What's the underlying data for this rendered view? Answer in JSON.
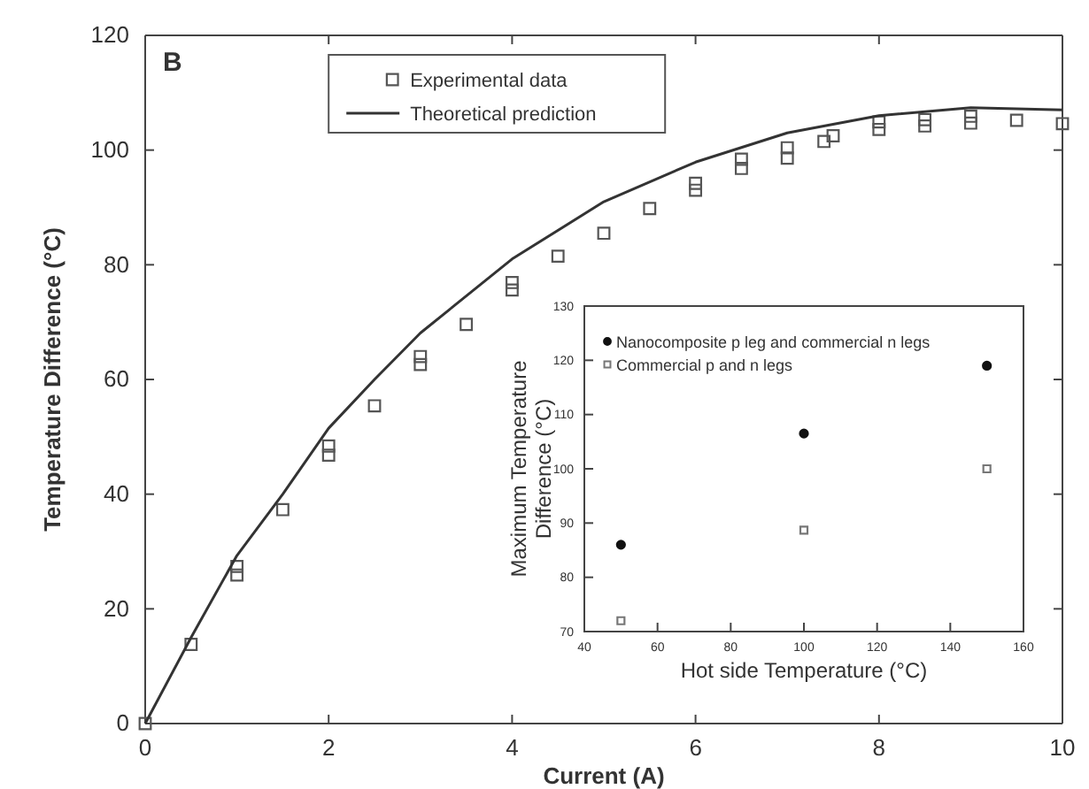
{
  "chart_data": [
    {
      "type": "scatter",
      "xlabel": "Current (A)",
      "ylabel": "Temperature Difference (°C)",
      "annotations": [
        "B"
      ],
      "xlim": [
        0,
        10
      ],
      "ylim": [
        0,
        120
      ],
      "xticks": [
        0,
        2,
        4,
        6,
        8,
        10
      ],
      "yticks": [
        0,
        20,
        40,
        60,
        80,
        100,
        120
      ],
      "legend": "top left",
      "grid": false,
      "series": [
        {
          "name": "Experimental data",
          "type": "scatter",
          "marker": "square",
          "color": "#555555",
          "x": [
            0,
            0.5,
            1,
            1,
            1.5,
            2,
            2,
            2.5,
            3,
            3,
            3.5,
            4,
            4,
            4.5,
            5,
            5.5,
            6,
            6,
            6.5,
            6.5,
            7,
            7,
            7.4,
            7.5,
            8,
            8,
            8.5,
            8.5,
            9,
            9,
            9.5,
            10
          ],
          "values": [
            0,
            13.8,
            27.4,
            25.9,
            37.3,
            48.4,
            46.8,
            55.4,
            64,
            62.6,
            69.6,
            76.9,
            75.6,
            81.5,
            85.5,
            89.8,
            94.2,
            93,
            98.4,
            96.8,
            100.4,
            98.6,
            101.5,
            102.5,
            104.9,
            103.6,
            105.3,
            104.2,
            105.9,
            104.7,
            105.2,
            104.6
          ]
        },
        {
          "name": "Theoretical prediction",
          "type": "line",
          "line_style": "solid",
          "marker": "none",
          "color": "#333333",
          "x": [
            0,
            0.5,
            1,
            1.5,
            2,
            2.5,
            3,
            4,
            5,
            6,
            7,
            8,
            9,
            10
          ],
          "values": [
            0,
            15,
            29.3,
            40,
            51.5,
            60,
            68.1,
            81,
            91,
            97.9,
            103,
            106,
            107.4,
            107
          ]
        }
      ]
    },
    {
      "type": "scatter",
      "xlabel": "Hot side Temperature (°C)",
      "ylabel": "Maximum Temperature Difference (°C)",
      "xlim": [
        40,
        160
      ],
      "ylim": [
        70,
        130
      ],
      "xticks": [
        40,
        60,
        80,
        100,
        120,
        140,
        160
      ],
      "yticks": [
        70,
        80,
        90,
        100,
        110,
        120,
        130
      ],
      "legend": "top left",
      "grid": false,
      "series": [
        {
          "name": "Nanocomposite p leg and commercial n legs",
          "type": "scatter",
          "marker": "circle",
          "color": "#111111",
          "x": [
            50,
            100,
            150
          ],
          "values": [
            86,
            106.5,
            119
          ]
        },
        {
          "name": "Commercial p and n legs",
          "type": "scatter",
          "marker": "square",
          "color": "#777777",
          "x": [
            50,
            100,
            150
          ],
          "values": [
            72,
            88.7,
            100
          ]
        }
      ]
    }
  ]
}
